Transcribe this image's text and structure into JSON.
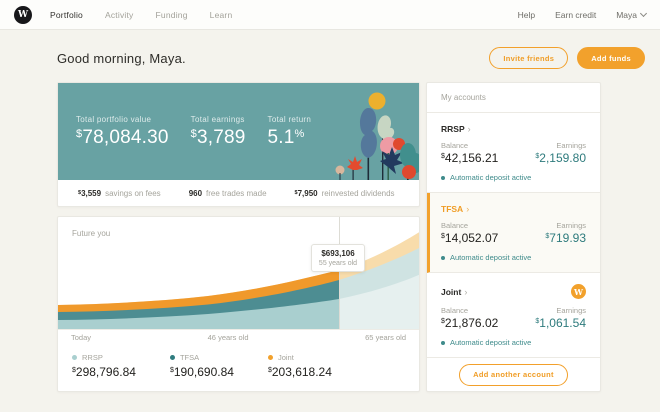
{
  "theme": {
    "accent_orange": "#f2a12c",
    "banner_teal": "#68a2a3",
    "earnings_teal": "#2e7b7d",
    "page_background": "#f4f3ed"
  },
  "header": {
    "brand": "W",
    "nav": [
      {
        "label": "Portfolio",
        "active": true
      },
      {
        "label": "Activity",
        "active": false
      },
      {
        "label": "Funding",
        "active": false
      },
      {
        "label": "Learn",
        "active": false
      }
    ],
    "right": {
      "help": "Help",
      "earn_credit": "Earn credit",
      "user": "Maya"
    }
  },
  "greeting": {
    "title": "Good morning, Maya.",
    "invite_button": "Invite friends",
    "add_funds_button": "Add funds"
  },
  "summary": {
    "stats": [
      {
        "label": "Total portfolio value",
        "value": "$78,084.30"
      },
      {
        "label": "Total earnings",
        "value": "$3,789"
      },
      {
        "label": "Total return",
        "value": "5.1",
        "suffix": "%"
      }
    ],
    "substats": [
      {
        "value": "$3,559",
        "label": "savings on fees"
      },
      {
        "value": "960",
        "label": "free trades made"
      },
      {
        "value": "$7,950",
        "label": "reinvested dividends"
      }
    ]
  },
  "chart": {
    "title": "Future you",
    "tooltip": {
      "total": "$693,106",
      "age": "55 years old"
    },
    "x_labels": {
      "start": "Today",
      "mid": "46 years old",
      "end": "65 years old"
    },
    "legend": [
      {
        "name": "RRSP",
        "value": "$298,796.84",
        "color": "#a9cfcf"
      },
      {
        "name": "TFSA",
        "value": "$190,690.84",
        "color": "#2f7c7f"
      },
      {
        "name": "Joint",
        "value": "$203,618.24",
        "color": "#f2a12c"
      }
    ]
  },
  "chart_data": {
    "type": "area",
    "stacked": true,
    "title": "Future you",
    "x_axis_labels": [
      "Today",
      "46 years old",
      "65 years old"
    ],
    "hover_point": {
      "age": "55 years old",
      "total": 693106
    },
    "series": [
      {
        "name": "RRSP",
        "color": "#a9cfcf",
        "value_at_hover": 298796.84
      },
      {
        "name": "TFSA",
        "color": "#4d8d92",
        "value_at_hover": 190690.84
      },
      {
        "name": "Joint",
        "color": "#f0992b",
        "value_at_hover": 203618.24
      }
    ],
    "notes": "Stacked projection area chart from Today to age 65; portion beyond hovered age (55) rendered in faded colors",
    "legend_position": "bottom",
    "grid": false
  },
  "accounts": {
    "title": "My accounts",
    "chevron": "›",
    "balance_label": "Balance",
    "earnings_label": "Earnings",
    "status": "Automatic deposit active",
    "items": [
      {
        "name": "RRSP",
        "balance": "$42,156.21",
        "earnings": "$2,159.80",
        "active": false
      },
      {
        "name": "TFSA",
        "balance": "$14,052.07",
        "earnings": "$719.93",
        "active": true
      },
      {
        "name": "Joint",
        "balance": "$21,876.02",
        "earnings": "$1,061.54",
        "active": false,
        "badge": "W"
      }
    ],
    "add_button": "Add another account"
  }
}
